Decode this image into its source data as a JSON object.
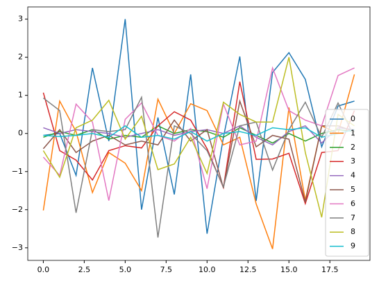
{
  "chart_data": {
    "type": "line",
    "xlim": [
      -0.95,
      19.95
    ],
    "ylim": [
      -3.33,
      3.32
    ],
    "xticks": [
      {
        "value": 0,
        "label": "0.0"
      },
      {
        "value": 2.5,
        "label": "2.5"
      },
      {
        "value": 5,
        "label": "5.0"
      },
      {
        "value": 7.5,
        "label": "7.5"
      },
      {
        "value": 10,
        "label": "10.0"
      },
      {
        "value": 12.5,
        "label": "12.5"
      },
      {
        "value": 15,
        "label": "15.0"
      },
      {
        "value": 17.5,
        "label": "17.5"
      }
    ],
    "yticks": [
      {
        "value": -3,
        "label": "−3"
      },
      {
        "value": -2,
        "label": "−2"
      },
      {
        "value": -1,
        "label": "−1"
      },
      0,
      1,
      2,
      3
    ],
    "legend": "lower right",
    "x": [
      0,
      1,
      2,
      3,
      4,
      5,
      6,
      7,
      8,
      9,
      10,
      11,
      12,
      13,
      14,
      15,
      16,
      17,
      18,
      19
    ],
    "series": [
      {
        "name": "0",
        "color": "#1f77b4",
        "values": [
          -0.05,
          0.0,
          -1.1,
          1.72,
          -0.2,
          3.0,
          -2.0,
          0.42,
          -1.6,
          1.55,
          -2.63,
          -0.1,
          2.02,
          -1.77,
          1.6,
          2.12,
          1.42,
          -0.35,
          0.72,
          0.85
        ]
      },
      {
        "name": "1",
        "color": "#ff7f0e",
        "values": [
          -2.02,
          0.85,
          0.05,
          -1.55,
          -0.5,
          -0.78,
          -1.5,
          0.9,
          0.0,
          0.78,
          0.6,
          -0.3,
          -0.1,
          -1.85,
          -3.03,
          0.68,
          -1.75,
          0.2,
          0.0,
          1.55
        ]
      },
      {
        "name": "2",
        "color": "#2ca02c",
        "values": [
          -0.1,
          0.05,
          -0.05,
          0.1,
          -0.15,
          -0.05,
          -0.1,
          0.2,
          0.0,
          0.1,
          0.05,
          -0.1,
          0.15,
          -0.05,
          -0.25,
          0.0,
          -0.2,
          0.0,
          0.1,
          0.05
        ]
      },
      {
        "name": "3",
        "color": "#d62728",
        "values": [
          1.07,
          -0.45,
          -0.7,
          -1.22,
          -0.45,
          -0.32,
          -0.38,
          0.2,
          0.57,
          0.35,
          -0.4,
          -1.42,
          1.36,
          -0.68,
          -0.67,
          -0.52,
          -1.84,
          -0.5,
          -0.45,
          0.6
        ]
      },
      {
        "name": "4",
        "color": "#9467bd",
        "values": [
          0.15,
          0.0,
          0.1,
          0.05,
          0.0,
          -0.1,
          0.0,
          0.1,
          -0.05,
          0.05,
          0.1,
          0.0,
          0.2,
          -0.1,
          -0.3,
          0.05,
          0.2,
          -0.25,
          0.15,
          0.1
        ]
      },
      {
        "name": "5",
        "color": "#8c564b",
        "values": [
          -0.4,
          0.1,
          -0.5,
          -0.2,
          -0.05,
          -0.3,
          -0.2,
          -0.3,
          0.35,
          -0.2,
          0.1,
          -1.43,
          0.85,
          -0.35,
          -0.05,
          -0.15,
          -1.8,
          0.2,
          0.2,
          0.05
        ]
      },
      {
        "name": "6",
        "color": "#e377c2",
        "values": [
          -0.62,
          -1.1,
          0.77,
          0.3,
          -1.76,
          0.37,
          0.8,
          -0.05,
          -0.2,
          0.13,
          -1.45,
          0.77,
          -0.3,
          -0.2,
          1.72,
          0.6,
          0.35,
          0.2,
          1.52,
          1.72
        ]
      },
      {
        "name": "7",
        "color": "#7f7f7f",
        "values": [
          0.93,
          0.6,
          -2.08,
          0.1,
          0.05,
          0.1,
          0.95,
          -2.73,
          0.2,
          0.0,
          -0.45,
          -1.4,
          0.2,
          0.3,
          -0.96,
          0.1,
          0.82,
          -0.1,
          0.8,
          -0.1
        ]
      },
      {
        "name": "8",
        "color": "#bcbd22",
        "values": [
          -0.45,
          -1.15,
          0.15,
          0.35,
          0.87,
          -0.15,
          0.45,
          -0.95,
          -0.8,
          -0.1,
          -1.05,
          0.82,
          0.5,
          0.3,
          0.3,
          2.0,
          -0.5,
          -2.2,
          0.5,
          0.2
        ]
      },
      {
        "name": "9",
        "color": "#17becf",
        "values": [
          -0.05,
          -0.08,
          -0.05,
          0.0,
          -0.1,
          0.2,
          -0.1,
          -0.05,
          -0.15,
          0.05,
          -0.2,
          0.0,
          0.05,
          -0.05,
          0.15,
          0.1,
          0.15,
          -0.1,
          0.0,
          0.1
        ]
      }
    ]
  }
}
